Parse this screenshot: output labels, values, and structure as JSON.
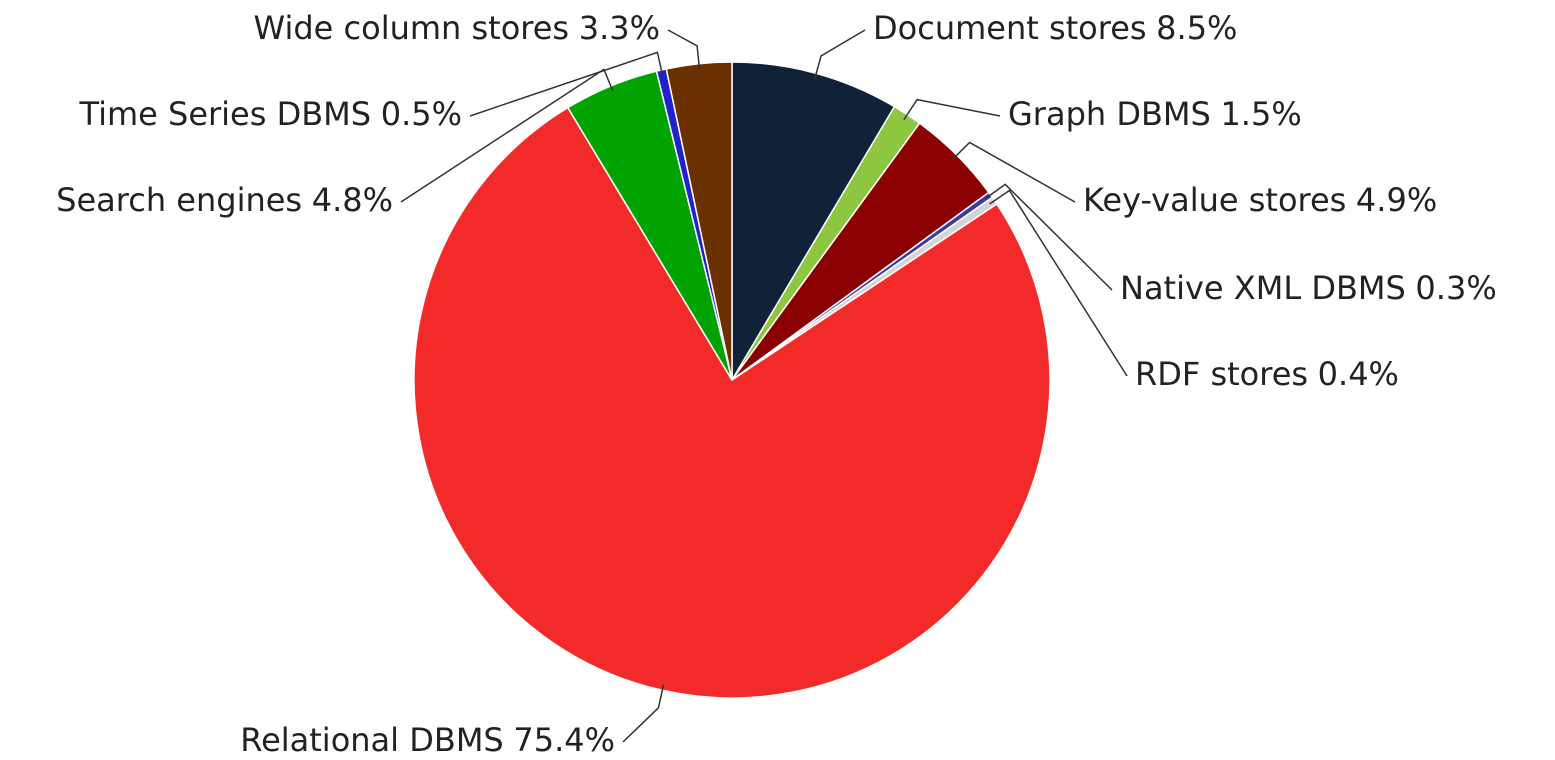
{
  "chart_data": {
    "type": "pie",
    "categories": [
      "Document stores",
      "Graph DBMS",
      "Key-value stores",
      "Native XML DBMS",
      "RDF stores",
      "Relational DBMS",
      "Search engines",
      "Time Series DBMS",
      "Wide column stores"
    ],
    "values": [
      8.5,
      1.5,
      4.9,
      0.3,
      0.4,
      75.4,
      4.8,
      0.5,
      3.3
    ],
    "value_labels": [
      "8.5%",
      "1.5%",
      "4.9%",
      "0.3%",
      "0.4%",
      "75.4%",
      "4.8%",
      "0.5%",
      "3.3%"
    ],
    "colors": [
      "#0f2238",
      "#8dc63f",
      "#8b0000",
      "#3a3aa0",
      "#d4d4d4",
      "#f22a2a",
      "#00a300",
      "#2222cc",
      "#6b3000"
    ]
  }
}
